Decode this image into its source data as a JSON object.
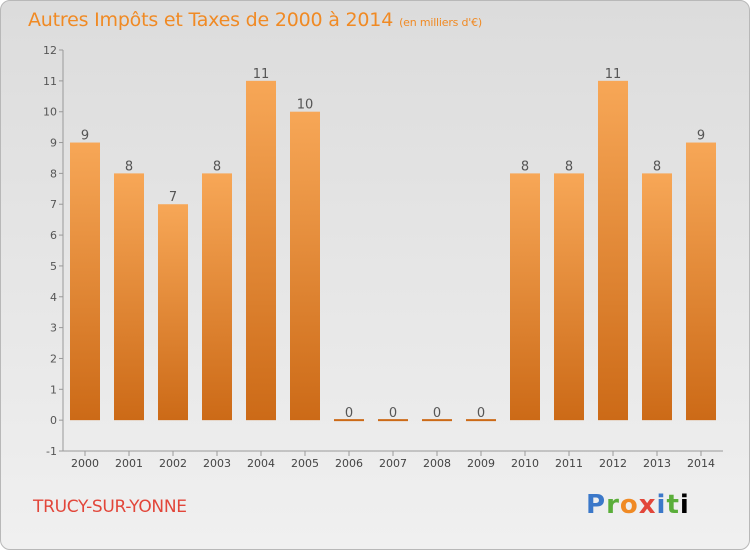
{
  "title": "Autres Impôts et Taxes de 2000 à 2014",
  "subtitle": "(en milliers d'€)",
  "commune": "TRUCY-SUR-YONNE",
  "logo": {
    "letters": [
      "P",
      "r",
      "o",
      "x",
      "i",
      "t",
      "i"
    ]
  },
  "colors": {
    "bar_light": "#f7a757",
    "bar_dark": "#cc6a17",
    "title": "#f08a24",
    "commune": "#e2463a"
  },
  "chart_data": {
    "type": "bar",
    "title": "Autres Impôts et Taxes de 2000 à 2014",
    "subtitle": "(en milliers d'€)",
    "categories": [
      "2000",
      "2001",
      "2002",
      "2003",
      "2004",
      "2005",
      "2006",
      "2007",
      "2008",
      "2009",
      "2010",
      "2011",
      "2012",
      "2013",
      "2014"
    ],
    "values": [
      9,
      8,
      7,
      8,
      11,
      10,
      0,
      0,
      0,
      0,
      8,
      8,
      11,
      8,
      9
    ],
    "ylim": [
      -1,
      12
    ],
    "yticks": [
      "-1",
      "0",
      "1",
      "2",
      "3",
      "4",
      "5",
      "6",
      "7",
      "8",
      "9",
      "10",
      "11",
      "12"
    ],
    "grid": false,
    "legend": "none"
  }
}
